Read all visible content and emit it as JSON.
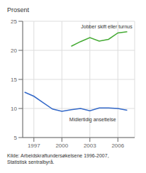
{
  "chart_data": {
    "type": "line",
    "title": "Prosent",
    "source": "Kilde: Arbeidskraftundersøkelsene 1996-2007,\nStatistisk sentralbyrå.",
    "series": [
      {
        "color": "#3368c8",
        "x": [
          1996,
          1997,
          1998,
          1999,
          2000,
          2001,
          2002,
          2003,
          2004,
          2005,
          2006,
          2007
        ],
        "values": [
          12.8,
          12.1,
          11.0,
          9.9,
          9.5,
          9.8,
          10.0,
          9.6,
          10.1,
          10.1,
          10.0,
          9.7
        ]
      },
      {
        "color": "#44aa33",
        "x": [
          2001,
          2002,
          2003,
          2004,
          2005,
          2006,
          2007
        ],
        "values": [
          20.7,
          21.5,
          22.2,
          21.6,
          21.9,
          23.0,
          23.2
        ]
      }
    ],
    "annotations": [
      {
        "text": "Jobber skift eller turnus",
        "x": 2004.8,
        "y": 23.7,
        "position": "top"
      },
      {
        "text": "Midlertidig ansettelse",
        "x": 2003.3,
        "y": 8.5,
        "position": "bottom"
      }
    ],
    "xlim": [
      1995.8,
      2007.8
    ],
    "xticks": [
      1997,
      2000,
      2003,
      2006
    ],
    "ylim": [
      5,
      25
    ],
    "yticks": [
      5,
      10,
      15,
      20,
      25
    ],
    "grid": true
  }
}
